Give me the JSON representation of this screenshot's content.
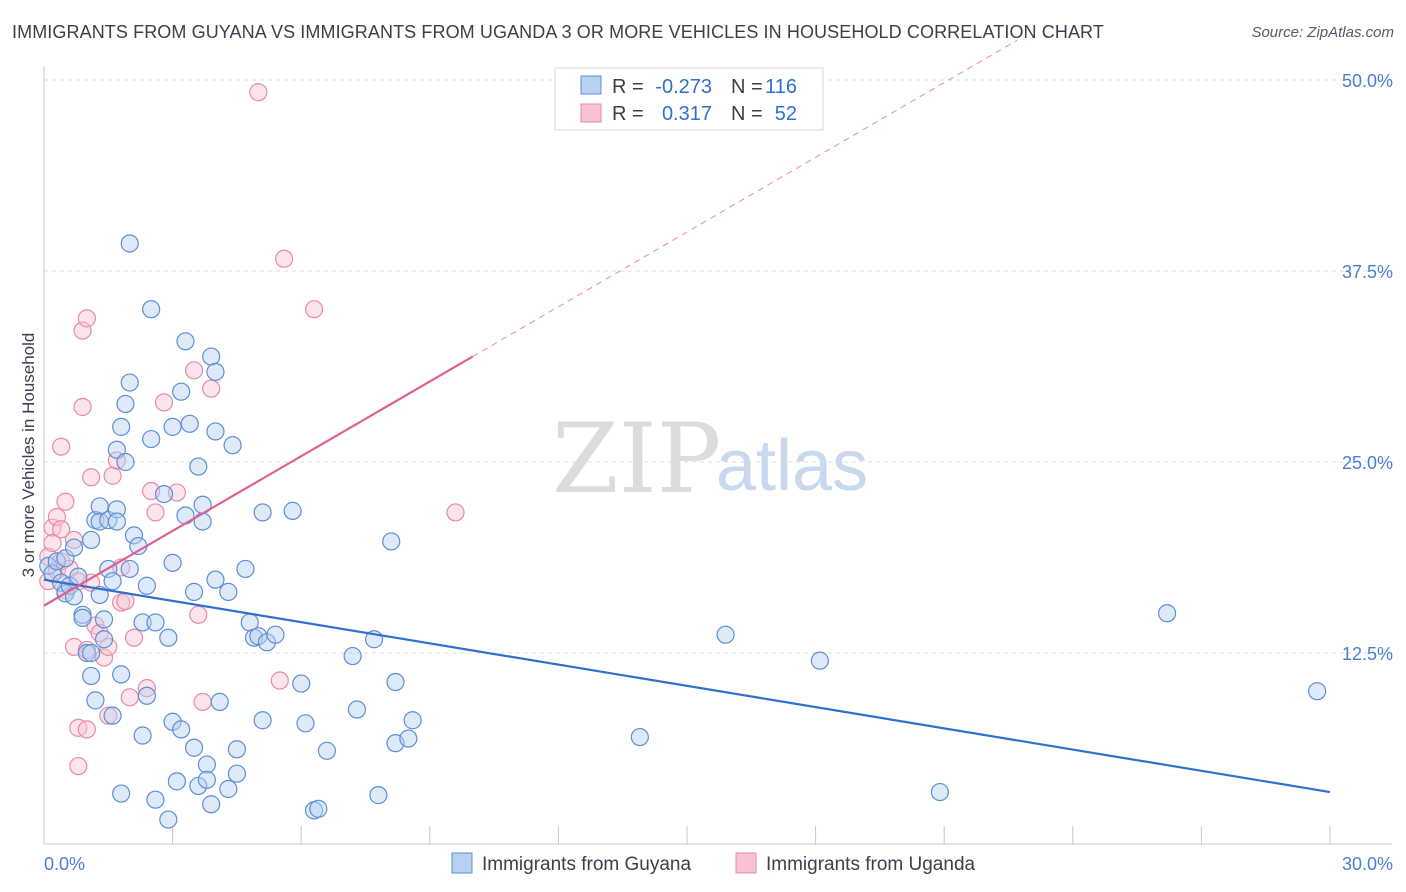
{
  "title": "IMMIGRANTS FROM GUYANA VS IMMIGRANTS FROM UGANDA 3 OR MORE VEHICLES IN HOUSEHOLD CORRELATION CHART",
  "source": "Source: ZipAtlas.com",
  "watermark": {
    "zip": "ZIP",
    "atlas": "atlas"
  },
  "colors": {
    "guyana_fill": "#b9d1f0",
    "guyana_stroke": "#5b8fd6",
    "guyana_line": "#2f6fd0",
    "uganda_fill": "#f7c3d3",
    "uganda_stroke": "#e98aa8",
    "uganda_line": "#e06090",
    "tick_text": "#4a7fd0",
    "grid": "#dcdcdc"
  },
  "legend": {
    "rows": [
      {
        "r_label": "R = ",
        "r_value": "-0.273",
        "n_label": "N = ",
        "n_value": "116"
      },
      {
        "r_label": "R = ",
        "r_value": "0.317",
        "n_label": "N = ",
        "n_value": "52"
      }
    ]
  },
  "chart_data": {
    "type": "scatter",
    "xlabel": "",
    "ylabel": "3 or more Vehicles in Household",
    "xlim": [
      0,
      30
    ],
    "ylim": [
      0,
      50
    ],
    "x_tick_labels": [
      "0.0%",
      "30.0%"
    ],
    "y_tick_labels": [
      {
        "value": 12.5,
        "label": "12.5%"
      },
      {
        "value": 25,
        "label": "25.0%"
      },
      {
        "value": 37.5,
        "label": "37.5%"
      },
      {
        "value": 50,
        "label": "50.0%"
      }
    ],
    "grid": "horizontal dashed",
    "legend_position": "top-center",
    "series": [
      {
        "name": "Immigrants from Guyana",
        "r": -0.273,
        "n": 116,
        "trend": {
          "x": [
            0,
            30
          ],
          "y": [
            17.3,
            3.4
          ],
          "dashed_ext": null
        },
        "points": [
          [
            0.1,
            18.2
          ],
          [
            0.2,
            17.7
          ],
          [
            0.3,
            18.5
          ],
          [
            0.4,
            17.1
          ],
          [
            0.5,
            16.4
          ],
          [
            0.5,
            18.7
          ],
          [
            0.6,
            16.9
          ],
          [
            0.7,
            19.4
          ],
          [
            0.7,
            16.2
          ],
          [
            0.8,
            17.5
          ],
          [
            0.9,
            15.0
          ],
          [
            0.9,
            14.8
          ],
          [
            1.0,
            12.5
          ],
          [
            1.1,
            12.5
          ],
          [
            1.1,
            19.9
          ],
          [
            1.1,
            11.0
          ],
          [
            1.2,
            21.2
          ],
          [
            1.2,
            9.4
          ],
          [
            1.3,
            22.1
          ],
          [
            1.3,
            21.1
          ],
          [
            1.3,
            16.3
          ],
          [
            1.4,
            14.7
          ],
          [
            1.4,
            13.4
          ],
          [
            1.5,
            18.0
          ],
          [
            1.5,
            21.2
          ],
          [
            1.6,
            8.4
          ],
          [
            1.6,
            17.2
          ],
          [
            1.7,
            21.9
          ],
          [
            1.7,
            21.1
          ],
          [
            1.7,
            25.8
          ],
          [
            1.8,
            27.3
          ],
          [
            1.8,
            11.1
          ],
          [
            1.8,
            3.3
          ],
          [
            1.9,
            25.0
          ],
          [
            1.9,
            28.8
          ],
          [
            2.0,
            30.2
          ],
          [
            2.0,
            39.3
          ],
          [
            2.0,
            18.0
          ],
          [
            2.1,
            20.2
          ],
          [
            2.2,
            19.5
          ],
          [
            2.3,
            7.1
          ],
          [
            2.3,
            14.5
          ],
          [
            2.4,
            16.9
          ],
          [
            2.4,
            9.7
          ],
          [
            2.5,
            35.0
          ],
          [
            2.5,
            26.5
          ],
          [
            2.6,
            14.5
          ],
          [
            2.6,
            2.9
          ],
          [
            2.8,
            22.9
          ],
          [
            2.9,
            13.5
          ],
          [
            2.9,
            1.6
          ],
          [
            3.0,
            8.0
          ],
          [
            3.0,
            18.4
          ],
          [
            3.0,
            27.3
          ],
          [
            3.1,
            4.1
          ],
          [
            3.2,
            29.6
          ],
          [
            3.2,
            7.5
          ],
          [
            3.3,
            32.9
          ],
          [
            3.3,
            21.5
          ],
          [
            3.4,
            27.5
          ],
          [
            3.5,
            16.5
          ],
          [
            3.5,
            6.3
          ],
          [
            3.6,
            24.7
          ],
          [
            3.6,
            3.8
          ],
          [
            3.7,
            22.2
          ],
          [
            3.7,
            21.1
          ],
          [
            3.8,
            5.2
          ],
          [
            3.8,
            4.2
          ],
          [
            3.9,
            2.6
          ],
          [
            3.9,
            31.9
          ],
          [
            4.0,
            30.9
          ],
          [
            4.0,
            27.0
          ],
          [
            4.0,
            17.3
          ],
          [
            4.1,
            9.3
          ],
          [
            4.3,
            16.5
          ],
          [
            4.3,
            3.6
          ],
          [
            4.4,
            26.1
          ],
          [
            4.5,
            4.6
          ],
          [
            4.5,
            6.2
          ],
          [
            4.7,
            18.0
          ],
          [
            4.8,
            14.5
          ],
          [
            4.9,
            13.5
          ],
          [
            5.0,
            13.6
          ],
          [
            5.1,
            8.1
          ],
          [
            5.1,
            21.7
          ],
          [
            5.2,
            13.2
          ],
          [
            5.4,
            13.7
          ],
          [
            5.8,
            21.8
          ],
          [
            6.0,
            10.5
          ],
          [
            6.1,
            7.9
          ],
          [
            6.3,
            2.2
          ],
          [
            6.4,
            2.3
          ],
          [
            6.6,
            6.1
          ],
          [
            7.2,
            12.3
          ],
          [
            7.3,
            8.8
          ],
          [
            7.7,
            13.4
          ],
          [
            7.8,
            3.2
          ],
          [
            8.1,
            19.8
          ],
          [
            8.2,
            10.6
          ],
          [
            8.2,
            6.6
          ],
          [
            8.5,
            6.9
          ],
          [
            8.6,
            8.1
          ],
          [
            13.9,
            7.0
          ],
          [
            15.9,
            13.7
          ],
          [
            18.1,
            12.0
          ],
          [
            20.9,
            3.4
          ],
          [
            26.2,
            15.1
          ],
          [
            29.7,
            10.0
          ]
        ]
      },
      {
        "name": "Immigrants from Uganda",
        "r": 0.317,
        "n": 52,
        "trend": {
          "x": [
            0,
            10
          ],
          "y": [
            15.6,
            31.9
          ],
          "dashed_ext": {
            "x": [
              10,
              22.7
            ],
            "y": [
              31.9,
              52.6
            ]
          }
        },
        "points": [
          [
            0.1,
            18.8
          ],
          [
            0.1,
            17.2
          ],
          [
            0.2,
            20.7
          ],
          [
            0.2,
            19.7
          ],
          [
            0.3,
            21.4
          ],
          [
            0.3,
            17.9
          ],
          [
            0.4,
            20.6
          ],
          [
            0.4,
            18.5
          ],
          [
            0.4,
            26.0
          ],
          [
            0.5,
            16.6
          ],
          [
            0.5,
            22.4
          ],
          [
            0.6,
            18.0
          ],
          [
            0.7,
            19.9
          ],
          [
            0.7,
            12.9
          ],
          [
            0.8,
            17.2
          ],
          [
            0.8,
            5.1
          ],
          [
            0.8,
            7.6
          ],
          [
            0.9,
            28.6
          ],
          [
            0.9,
            33.6
          ],
          [
            1.0,
            34.4
          ],
          [
            1.0,
            12.7
          ],
          [
            1.0,
            7.5
          ],
          [
            1.1,
            24.0
          ],
          [
            1.1,
            17.1
          ],
          [
            1.2,
            14.3
          ],
          [
            1.3,
            13.8
          ],
          [
            1.4,
            12.2
          ],
          [
            1.5,
            8.4
          ],
          [
            1.5,
            12.9
          ],
          [
            1.6,
            24.1
          ],
          [
            1.7,
            25.1
          ],
          [
            1.8,
            18.1
          ],
          [
            1.8,
            15.8
          ],
          [
            1.9,
            15.9
          ],
          [
            2.0,
            9.6
          ],
          [
            2.1,
            13.5
          ],
          [
            2.4,
            10.2
          ],
          [
            2.5,
            23.1
          ],
          [
            2.6,
            21.7
          ],
          [
            2.8,
            28.9
          ],
          [
            3.1,
            23.0
          ],
          [
            3.5,
            31.0
          ],
          [
            3.6,
            15.0
          ],
          [
            3.7,
            9.3
          ],
          [
            3.9,
            29.8
          ],
          [
            5.0,
            49.2
          ],
          [
            5.5,
            10.7
          ],
          [
            5.6,
            38.3
          ],
          [
            6.3,
            35.0
          ],
          [
            9.6,
            21.7
          ]
        ]
      }
    ]
  },
  "bottom_legend": [
    "Immigrants from Guyana",
    "Immigrants from Uganda"
  ]
}
